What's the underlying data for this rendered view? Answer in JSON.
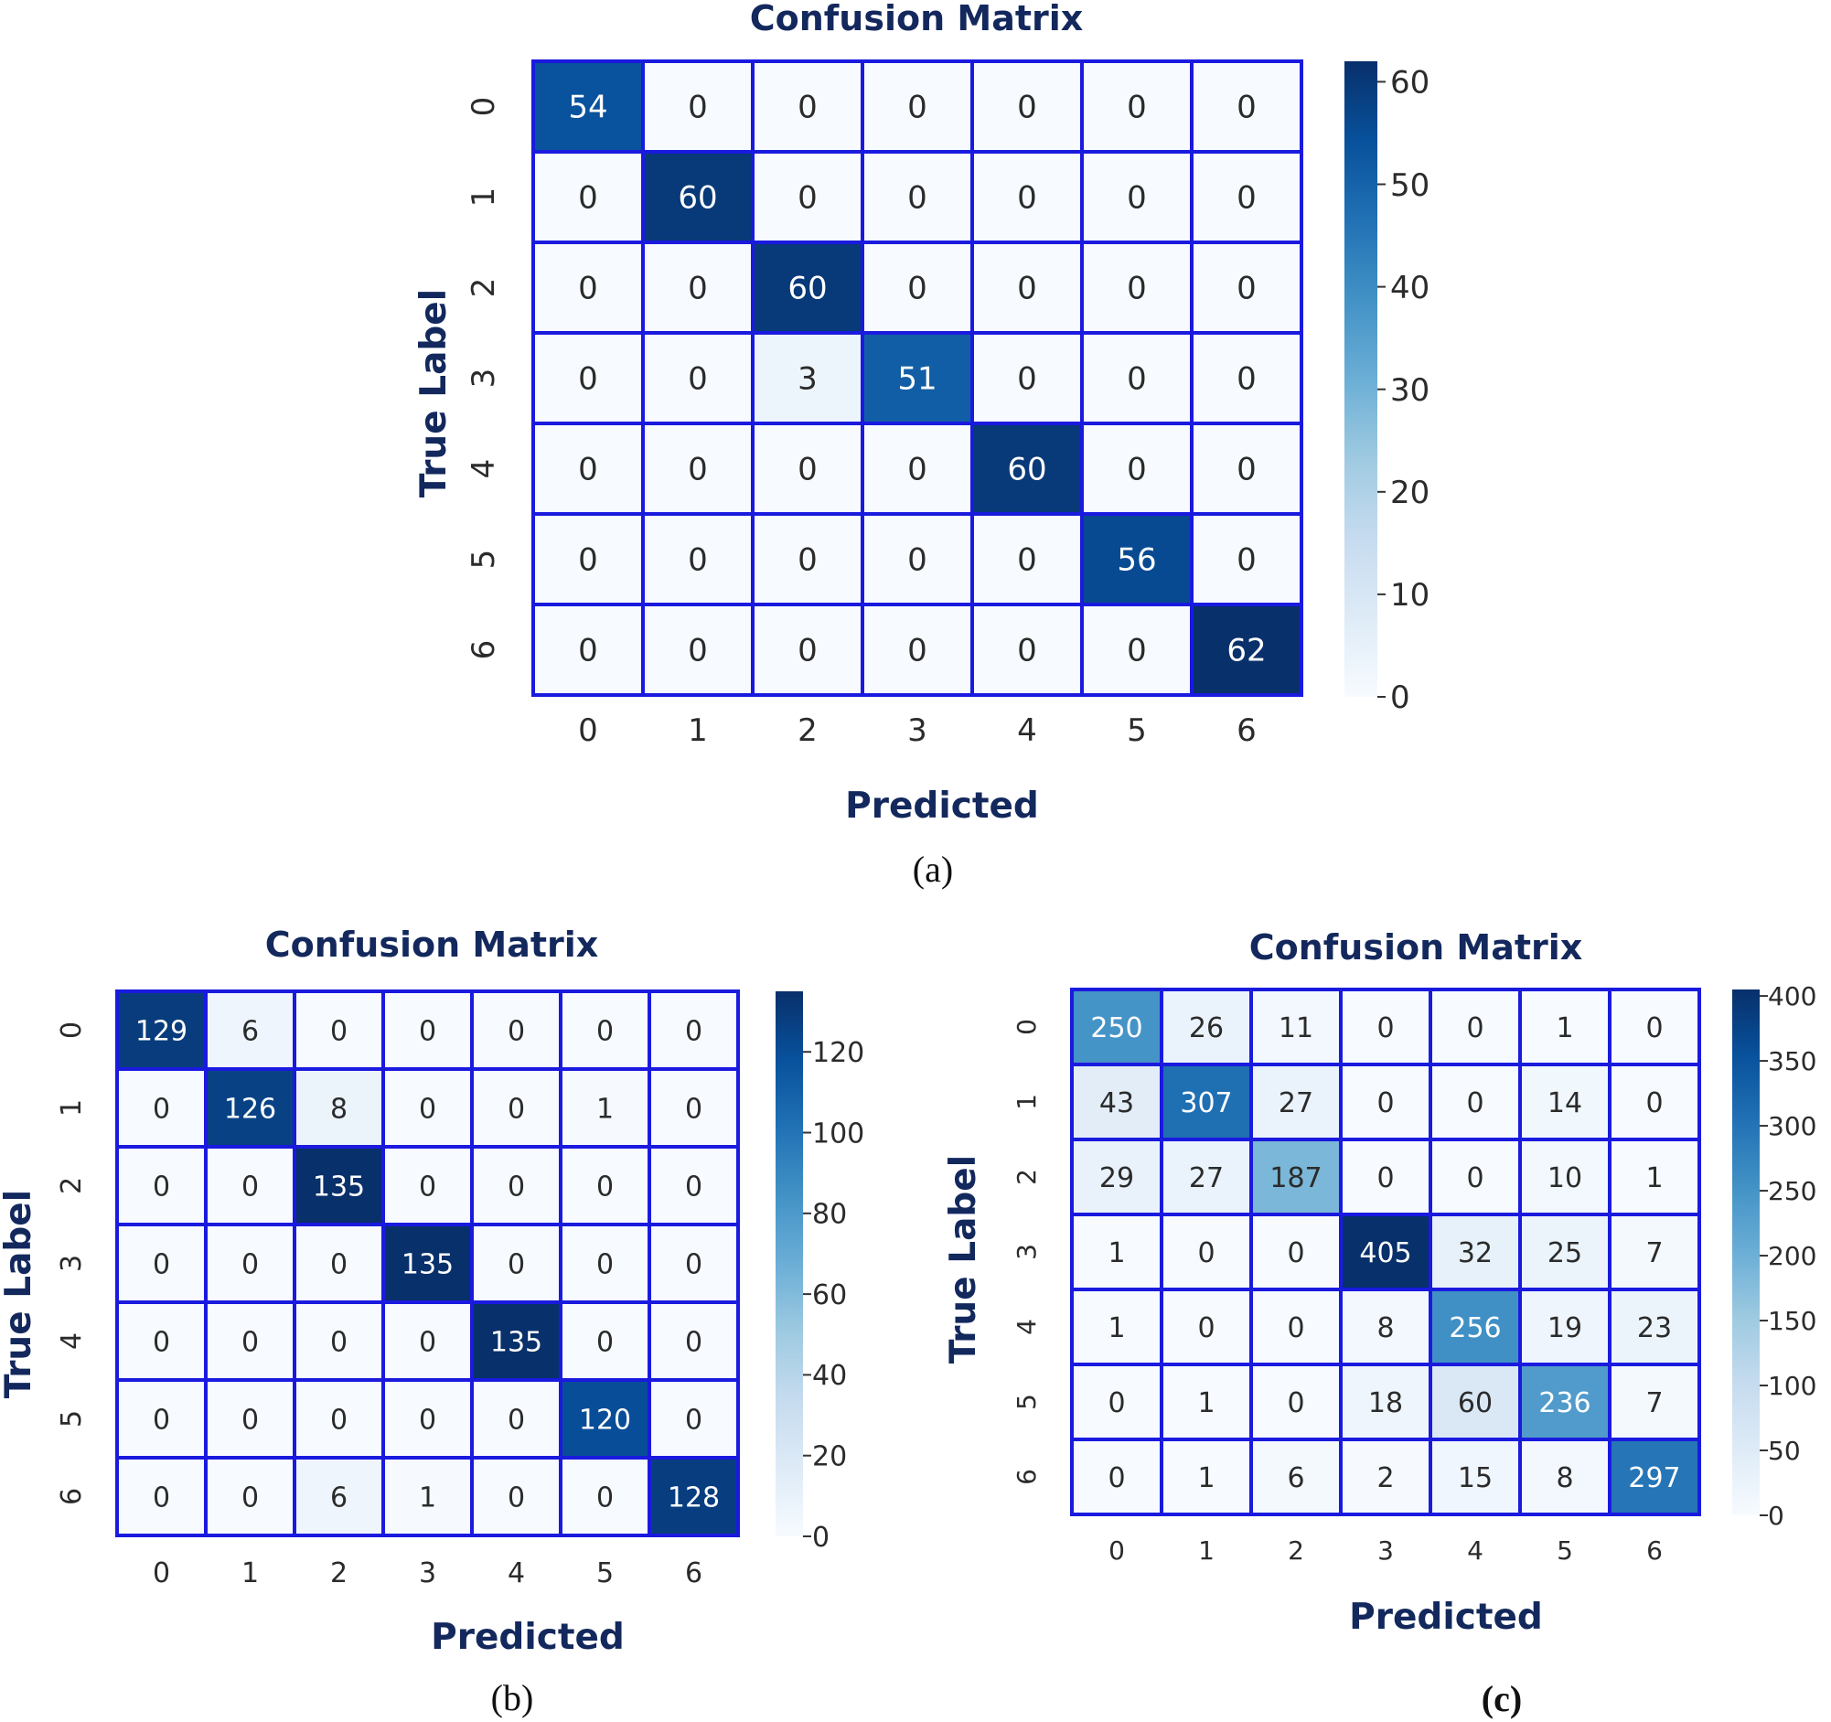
{
  "chart_data": [
    {
      "type": "heatmap",
      "panel": "(a)",
      "title": "Confusion Matrix",
      "xlabel": "Predicted",
      "ylabel": "True Label",
      "x_categories": [
        "0",
        "1",
        "2",
        "3",
        "4",
        "5",
        "6"
      ],
      "y_categories": [
        "0",
        "1",
        "2",
        "3",
        "4",
        "5",
        "6"
      ],
      "values": [
        [
          54,
          0,
          0,
          0,
          0,
          0,
          0
        ],
        [
          0,
          60,
          0,
          0,
          0,
          0,
          0
        ],
        [
          0,
          0,
          60,
          0,
          0,
          0,
          0
        ],
        [
          0,
          0,
          3,
          51,
          0,
          0,
          0
        ],
        [
          0,
          0,
          0,
          0,
          60,
          0,
          0
        ],
        [
          0,
          0,
          0,
          0,
          0,
          56,
          0
        ],
        [
          0,
          0,
          0,
          0,
          0,
          0,
          62
        ]
      ],
      "colorbar": {
        "min": 0,
        "max": 62,
        "ticks": [
          0,
          10,
          20,
          30,
          40,
          50,
          60
        ],
        "colormap": "Blues"
      },
      "grid_color": "#1a1adf"
    },
    {
      "type": "heatmap",
      "panel": "(b)",
      "title": "Confusion Matrix",
      "xlabel": "Predicted",
      "ylabel": "True Label",
      "x_categories": [
        "0",
        "1",
        "2",
        "3",
        "4",
        "5",
        "6"
      ],
      "y_categories": [
        "0",
        "1",
        "2",
        "3",
        "4",
        "5",
        "6"
      ],
      "values": [
        [
          129,
          6,
          0,
          0,
          0,
          0,
          0
        ],
        [
          0,
          126,
          8,
          0,
          0,
          1,
          0
        ],
        [
          0,
          0,
          135,
          0,
          0,
          0,
          0
        ],
        [
          0,
          0,
          0,
          135,
          0,
          0,
          0
        ],
        [
          0,
          0,
          0,
          0,
          135,
          0,
          0
        ],
        [
          0,
          0,
          0,
          0,
          0,
          120,
          0
        ],
        [
          0,
          0,
          6,
          1,
          0,
          0,
          128
        ]
      ],
      "colorbar": {
        "min": 0,
        "max": 135,
        "ticks": [
          0,
          20,
          40,
          60,
          80,
          100,
          120
        ],
        "colormap": "Blues"
      },
      "grid_color": "#1a1adf"
    },
    {
      "type": "heatmap",
      "panel": "(c)",
      "title": "Confusion Matrix",
      "xlabel": "Predicted",
      "ylabel": "True Label",
      "x_categories": [
        "0",
        "1",
        "2",
        "3",
        "4",
        "5",
        "6"
      ],
      "y_categories": [
        "0",
        "1",
        "2",
        "3",
        "4",
        "5",
        "6"
      ],
      "values": [
        [
          250,
          26,
          11,
          0,
          0,
          1,
          0
        ],
        [
          43,
          307,
          27,
          0,
          0,
          14,
          0
        ],
        [
          29,
          27,
          187,
          0,
          0,
          10,
          1
        ],
        [
          1,
          0,
          0,
          405,
          32,
          25,
          7
        ],
        [
          1,
          0,
          0,
          8,
          256,
          19,
          23
        ],
        [
          0,
          1,
          0,
          18,
          60,
          236,
          7
        ],
        [
          0,
          1,
          6,
          2,
          15,
          8,
          297
        ]
      ],
      "colorbar": {
        "min": 0,
        "max": 405,
        "ticks": [
          0,
          50,
          100,
          150,
          200,
          250,
          300,
          350,
          400
        ],
        "colormap": "Blues"
      },
      "grid_color": "#1a1adf"
    }
  ]
}
